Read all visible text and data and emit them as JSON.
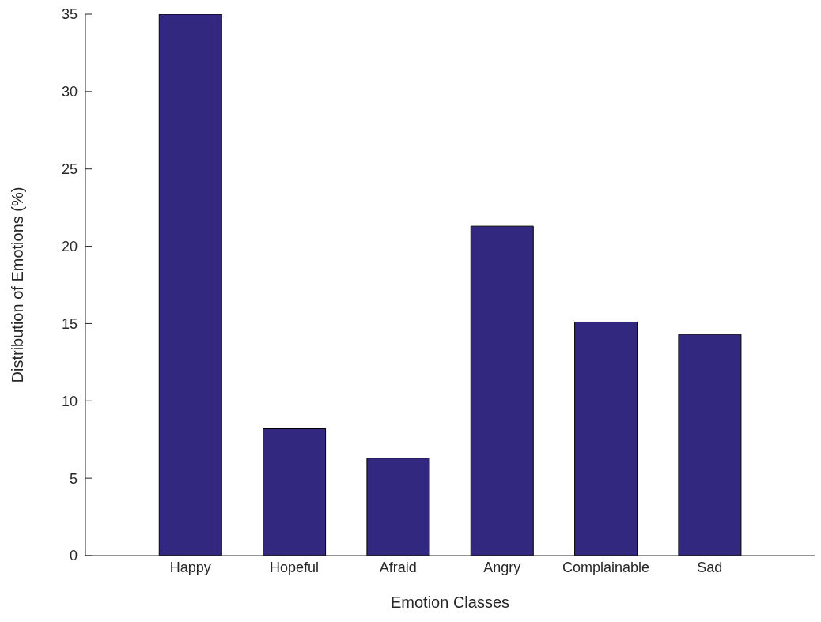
{
  "chart_data": {
    "type": "bar",
    "xlabel": "Emotion Classes",
    "ylabel": "Distribution of Emotions (%)",
    "categories": [
      "Happy",
      "Hopeful",
      "Afraid",
      "Angry",
      "Complainable",
      "Sad"
    ],
    "values": [
      35,
      8.2,
      6.3,
      21.3,
      15.1,
      14.3
    ],
    "color": "#32287f",
    "ylim": [
      0,
      35
    ],
    "yticks": [
      0,
      5,
      10,
      15,
      20,
      25,
      30,
      35
    ],
    "grid": false,
    "legend": false
  }
}
